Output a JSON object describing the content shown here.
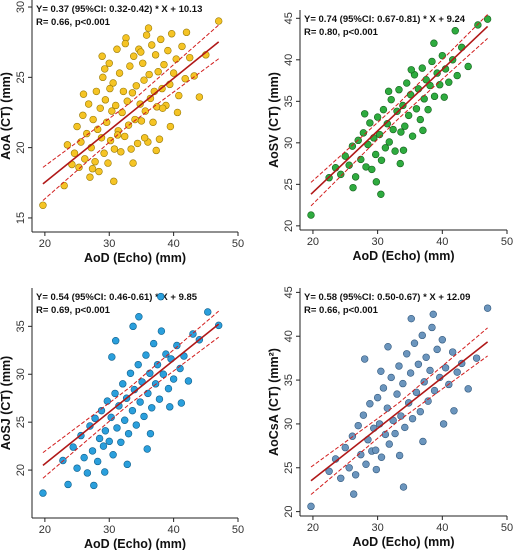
{
  "chart_data": [
    {
      "type": "scatter",
      "equation": "Y= 0.37 (95%CI: 0.32-0.42) * X + 10.13",
      "stats": "R= 0.66, p<0.001",
      "xlabel": "AoD (Echo) (mm)",
      "ylabel": "AoA (CT) (mm)",
      "xlim": [
        18,
        50
      ],
      "ylim": [
        14,
        30.5
      ],
      "xticks": [
        "20",
        "30",
        "40",
        "50"
      ],
      "yticks": [
        "15",
        "20",
        "25",
        "30"
      ],
      "color": "#f5c425",
      "edge": "#9a7a05",
      "slope": 0.37,
      "intercept": 10.13,
      "ci_half_width": 0.75,
      "x": [
        19.7,
        23.0,
        23.5,
        24.2,
        24.6,
        25.0,
        25.3,
        25.6,
        25.9,
        26.2,
        26.5,
        26.8,
        27.0,
        27.2,
        27.5,
        27.8,
        28.0,
        28.2,
        28.4,
        28.6,
        28.8,
        29.0,
        29.2,
        29.4,
        29.6,
        29.8,
        30.0,
        30.2,
        30.4,
        30.6,
        30.8,
        31.0,
        31.2,
        31.4,
        31.6,
        31.8,
        32.0,
        32.2,
        32.4,
        32.6,
        32.8,
        33.0,
        33.2,
        33.4,
        33.6,
        33.8,
        34.0,
        34.2,
        34.4,
        34.6,
        34.8,
        35.0,
        35.2,
        35.4,
        35.6,
        35.8,
        36.0,
        36.2,
        36.4,
        36.6,
        36.8,
        37.0,
        37.2,
        37.4,
        37.6,
        37.8,
        38.0,
        38.2,
        38.5,
        38.8,
        39.1,
        39.4,
        39.7,
        40.0,
        40.4,
        40.8,
        41.3,
        41.8,
        42.5,
        43.2,
        44.0,
        45.0,
        47.0,
        26.0,
        27.4,
        28.9,
        30.1,
        31.3,
        32.5,
        33.7,
        34.9,
        36.1,
        37.3,
        38.3,
        39.5,
        40.6,
        42.0,
        30.7,
        35.5,
        29.3
      ],
      "y": [
        15.9,
        17.3,
        20.2,
        18.8,
        19.6,
        21.5,
        18.6,
        20.4,
        22.3,
        19.2,
        21.0,
        23.1,
        17.9,
        20.0,
        22.0,
        19.0,
        24.0,
        21.3,
        18.3,
        22.8,
        20.7,
        25.0,
        19.6,
        23.4,
        21.8,
        18.9,
        26.0,
        20.5,
        22.6,
        24.6,
        19.9,
        23.0,
        27.0,
        21.2,
        25.3,
        19.7,
        22.5,
        24.0,
        20.8,
        27.8,
        23.3,
        21.6,
        25.8,
        19.9,
        23.9,
        26.5,
        22.0,
        24.4,
        20.3,
        27.0,
        23.1,
        21.9,
        26.0,
        24.8,
        22.6,
        28.0,
        20.4,
        25.2,
        23.5,
        27.3,
        21.8,
        24.0,
        26.6,
        22.9,
        25.4,
        20.6,
        27.7,
        24.2,
        25.9,
        23.0,
        26.9,
        24.5,
        28.1,
        25.3,
        26.3,
        23.7,
        27.2,
        24.9,
        26.4,
        25.1,
        23.6,
        26.6,
        29.0,
        23.8,
        18.5,
        26.5,
        24.2,
        20.9,
        27.4,
        18.9,
        26.8,
        28.5,
        19.8,
        22.8,
        21.5,
        22.5,
        28.2,
        17.6,
        20.7,
        25.6
      ]
    },
    {
      "type": "scatter",
      "equation": "Y= 0.74 (95%CI: 0.67-0.81) * X + 9.24",
      "stats": "R= 0.80, p<0.001",
      "xlabel": "AoD (Echo) (mm)",
      "ylabel": "AoSV (CT) (mm)",
      "xlim": [
        18,
        50
      ],
      "ylim": [
        19.5,
        46
      ],
      "xticks": [
        "20",
        "30",
        "40",
        "50"
      ],
      "yticks": [
        "20",
        "25",
        "30",
        "35",
        "40",
        "45"
      ],
      "color": "#2eab3f",
      "edge": "#14611c",
      "slope": 0.74,
      "intercept": 9.24,
      "ci_half_width": 0.9,
      "x": [
        19.7,
        22.5,
        23.5,
        24.3,
        25.0,
        25.6,
        26.1,
        26.6,
        27.0,
        27.4,
        27.8,
        28.2,
        28.5,
        28.8,
        29.1,
        29.4,
        29.7,
        30.0,
        30.3,
        30.6,
        30.9,
        31.2,
        31.5,
        31.8,
        32.1,
        32.4,
        32.7,
        33.0,
        33.3,
        33.6,
        33.9,
        34.2,
        34.5,
        34.8,
        35.1,
        35.4,
        35.7,
        36.0,
        36.3,
        36.6,
        36.9,
        37.2,
        37.5,
        37.8,
        38.1,
        38.4,
        38.8,
        39.2,
        39.6,
        40.0,
        40.5,
        41.0,
        41.6,
        42.3,
        43.0,
        44.0,
        45.5,
        47.0,
        26.2,
        28.0,
        29.8,
        31.7,
        33.5,
        35.2,
        37.0,
        38.7,
        40.3,
        42.0,
        30.5,
        34.0
      ],
      "y": [
        21.3,
        25.8,
        27.0,
        26.2,
        28.4,
        27.3,
        29.6,
        25.9,
        30.3,
        28.0,
        31.2,
        27.1,
        29.8,
        32.4,
        26.8,
        30.6,
        28.6,
        33.1,
        31.0,
        27.9,
        34.0,
        29.4,
        32.3,
        30.1,
        35.2,
        31.6,
        29.0,
        33.8,
        36.4,
        31.3,
        34.5,
        32.0,
        37.2,
        33.3,
        35.8,
        30.8,
        38.2,
        34.1,
        36.5,
        32.8,
        39.0,
        35.3,
        37.6,
        34.0,
        36.9,
        39.8,
        35.6,
        38.4,
        37.0,
        40.5,
        38.9,
        37.3,
        40.0,
        38.1,
        41.5,
        39.2,
        44.2,
        44.9,
        24.6,
        33.5,
        25.3,
        36.2,
        27.5,
        38.8,
        31.5,
        42.0,
        35.5,
        43.5,
        23.8,
        29.1
      ]
    },
    {
      "type": "scatter",
      "equation": "Y= 0.54 (95%CI: 0.46-0.61) * X + 9.85",
      "stats": "R= 0.69, p<0.001",
      "xlabel": "AoD (Echo) (mm)",
      "ylabel": "AoSJ (CT) (mm)",
      "xlim": [
        18,
        50
      ],
      "ylim": [
        15,
        39
      ],
      "xticks": [
        "20",
        "30",
        "40",
        "50"
      ],
      "yticks": [
        "20",
        "25",
        "30",
        "35"
      ],
      "color": "#2a9fdc",
      "edge": "#0f5f8c",
      "slope": 0.54,
      "intercept": 9.85,
      "ci_half_width": 0.85,
      "x": [
        19.7,
        22.8,
        23.6,
        24.4,
        25.0,
        25.6,
        26.1,
        26.6,
        27.0,
        27.4,
        27.8,
        28.2,
        28.5,
        28.8,
        29.1,
        29.4,
        29.7,
        30.0,
        30.3,
        30.6,
        30.9,
        31.2,
        31.5,
        31.8,
        32.1,
        32.4,
        32.7,
        33.0,
        33.3,
        33.6,
        33.9,
        34.2,
        34.5,
        34.8,
        35.1,
        35.4,
        35.7,
        36.0,
        36.3,
        36.6,
        36.9,
        37.2,
        37.5,
        37.8,
        38.1,
        38.4,
        38.8,
        39.2,
        39.6,
        40.0,
        40.5,
        41.0,
        41.6,
        42.3,
        43.0,
        44.0,
        45.3,
        47.0,
        27.6,
        29.3,
        31.0,
        32.8,
        34.6,
        36.4,
        38.0,
        39.4,
        41.2,
        30.4,
        33.7,
        35.9
      ],
      "y": [
        17.6,
        21.0,
        18.5,
        22.4,
        20.2,
        23.6,
        21.3,
        19.7,
        24.6,
        22.0,
        25.4,
        20.9,
        23.3,
        26.2,
        22.5,
        24.1,
        27.2,
        23.0,
        25.5,
        21.6,
        28.0,
        24.4,
        26.7,
        22.9,
        29.0,
        25.2,
        27.5,
        23.8,
        30.1,
        26.2,
        28.4,
        24.7,
        31.0,
        27.1,
        29.2,
        25.6,
        32.0,
        28.0,
        30.1,
        26.5,
        33.2,
        29.0,
        31.0,
        27.4,
        34.5,
        30.0,
        32.1,
        28.5,
        31.6,
        29.5,
        33.0,
        30.6,
        31.9,
        29.3,
        34.2,
        33.6,
        36.5,
        35.1,
        18.4,
        19.8,
        33.5,
        20.6,
        36.0,
        23.8,
        38.1,
        26.6,
        27.0,
        31.8,
        35.0,
        22.2
      ]
    },
    {
      "type": "scatter",
      "equation": "Y= 0.58 (95%CI: 0.50-0.67) * X + 12.09",
      "stats": "R= 0.66, p<0.001",
      "xlabel": "AoD (Echo) (mm)",
      "ylabel": "AoCsA (CT) (mm²)",
      "xlim": [
        18,
        50
      ],
      "ylim": [
        19.5,
        45.5
      ],
      "xticks": [
        "20",
        "30",
        "40",
        "50"
      ],
      "yticks": [
        "20",
        "25",
        "30",
        "35",
        "40",
        "45"
      ],
      "color": "#6b95bd",
      "edge": "#33597e",
      "slope": 0.58,
      "intercept": 12.09,
      "ci_half_width": 1.0,
      "x": [
        19.7,
        22.5,
        23.5,
        24.3,
        25.0,
        25.6,
        26.1,
        26.6,
        27.0,
        27.4,
        27.8,
        28.2,
        28.5,
        28.8,
        29.1,
        29.4,
        29.7,
        30.0,
        30.3,
        30.6,
        30.9,
        31.2,
        31.5,
        31.8,
        32.1,
        32.4,
        32.7,
        33.0,
        33.3,
        33.6,
        33.9,
        34.2,
        34.5,
        34.8,
        35.1,
        35.4,
        35.7,
        36.0,
        36.3,
        36.6,
        36.9,
        37.2,
        37.5,
        37.8,
        38.1,
        38.4,
        38.8,
        39.2,
        39.6,
        40.0,
        40.5,
        41.0,
        41.6,
        42.3,
        43.0,
        44.0,
        45.3,
        47.0,
        26.3,
        28.0,
        29.8,
        31.6,
        33.4,
        35.2,
        37.0,
        38.6,
        40.2,
        41.8,
        30.5,
        34.0
      ],
      "y": [
        20.6,
        24.6,
        26.0,
        23.8,
        27.3,
        25.0,
        28.6,
        24.2,
        29.8,
        26.5,
        31.0,
        25.4,
        28.2,
        32.3,
        26.9,
        29.5,
        27.0,
        33.0,
        30.0,
        26.2,
        34.1,
        28.8,
        31.8,
        27.7,
        35.3,
        30.4,
        28.9,
        33.4,
        36.6,
        30.9,
        34.6,
        29.6,
        38.0,
        32.4,
        35.8,
        30.6,
        39.2,
        33.6,
        36.8,
        31.4,
        40.1,
        34.8,
        37.6,
        32.6,
        36.1,
        41.0,
        33.8,
        38.5,
        35.3,
        39.6,
        36.4,
        34.5,
        38.2,
        35.9,
        36.9,
        34.0,
        37.5,
        43.2,
        22.0,
        37.4,
        24.8,
        38.8,
        26.4,
        42.0,
        28.0,
        42.5,
        30.0,
        31.5,
        36.0,
        22.8
      ]
    }
  ]
}
